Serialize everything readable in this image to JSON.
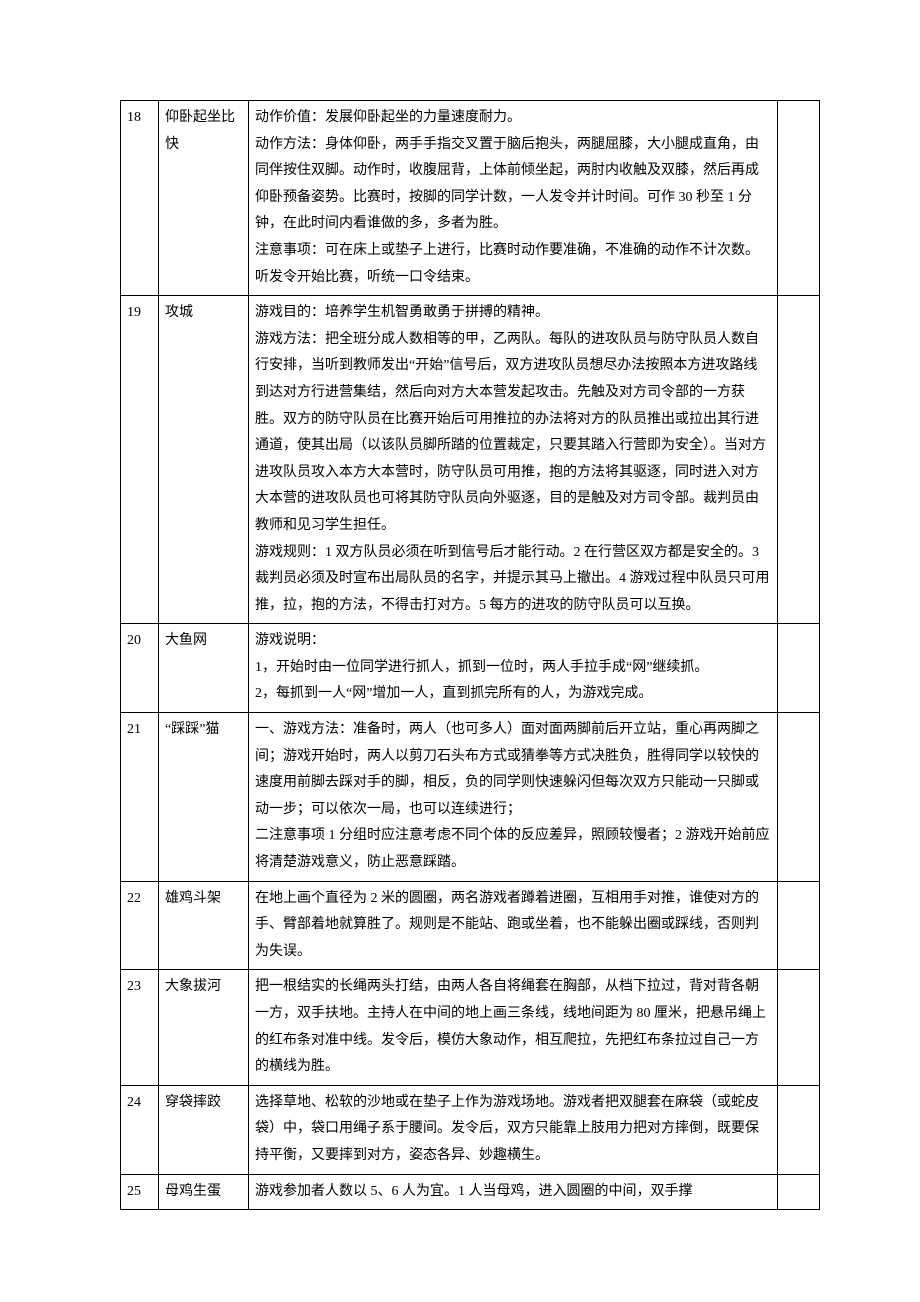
{
  "rows": [
    {
      "num": "18",
      "name": "仰卧起坐比快",
      "desc": "动作价值：发展仰卧起坐的力量速度耐力。\n动作方法：身体仰卧，两手手指交叉置于脑后抱头，两腿屈膝，大小腿成直角，由同伴按住双脚。动作时，收腹屈背，上体前倾坐起，两肘内收触及双膝，然后再成仰卧预备姿势。比赛时，按脚的同学计数，一人发令并计时间。可作 30 秒至 1 分钟，在此时间内看谁做的多，多者为胜。\n注意事项：可在床上或垫子上进行，比赛时动作要准确，不准确的动作不计次数。听发令开始比赛，听统一口令结束。",
      "extra": ""
    },
    {
      "num": "19",
      "name": "攻城",
      "desc": "游戏目的：培养学生机智勇敢勇于拼搏的精神。\n游戏方法：把全班分成人数相等的甲，乙两队。每队的进攻队员与防守队员人数自行安排，当听到教师发出“开始”信号后，双方进攻队员想尽办法按照本方进攻路线到达对方行进营集结，然后向对方大本营发起攻击。先触及对方司令部的一方获胜。双方的防守队员在比赛开始后可用推拉的办法将对方的队员推出或拉出其行进通道，使其出局（以该队员脚所踏的位置裁定，只要其踏入行营即为安全）。当对方进攻队员攻入本方大本营时，防守队员可用推，抱的方法将其驱逐，同时进入对方大本营的进攻队员也可将其防守队员向外驱逐，目的是触及对方司令部。裁判员由教师和见习学生担任。\n游戏规则：1 双方队员必须在听到信号后才能行动。2 在行营区双方都是安全的。3 裁判员必须及时宣布出局队员的名字，并提示其马上撤出。4 游戏过程中队员只可用推，拉，抱的方法，不得击打对方。5 每方的进攻的防守队员可以互换。",
      "extra": ""
    },
    {
      "num": "20",
      "name": "大鱼网",
      "desc": "游戏说明：\n1，开始时由一位同学进行抓人，抓到一位时，两人手拉手成“网”继续抓。\n2，每抓到一人“网”增加一人，直到抓完所有的人，为游戏完成。",
      "extra": ""
    },
    {
      "num": "21",
      "name": "“踩踩”猫",
      "desc": "一、游戏方法：准备时，两人（也可多人）面对面两脚前后开立站，重心再两脚之间；游戏开始时，两人以剪刀石头布方式或猜拳等方式决胜负，胜得同学以较快的速度用前脚去踩对手的脚，相反，负的同学则快速躲闪但每次双方只能动一只脚或动一步；可以依次一局，也可以连续进行；\n二注意事项 1 分组时应注意考虑不同个体的反应差异，照顾较慢者；2 游戏开始前应将清楚游戏意义，防止恶意踩踏。",
      "extra": ""
    },
    {
      "num": "22",
      "name": "雄鸡斗架",
      "desc": "在地上画个直径为 2 米的圆圈，两名游戏者蹲着进圈，互相用手对推，谁使对方的手、臂部着地就算胜了。规则是不能站、跑或坐着，也不能躲出圈或踩线，否则判为失误。",
      "extra": ""
    },
    {
      "num": "23",
      "name": "大象拔河",
      "desc": "把一根结实的长绳两头打结，由两人各自将绳套在胸部，从档下拉过，背对背各朝一方，双手扶地。主持人在中间的地上画三条线，线地间距为 80 厘米，把悬吊绳上的红布条对准中线。发令后，模仿大象动作，相互爬拉，先把红布条拉过自己一方的横线为胜。",
      "extra": ""
    },
    {
      "num": "24",
      "name": "穿袋摔跤",
      "desc": "选择草地、松软的沙地或在垫子上作为游戏场地。游戏者把双腿套在麻袋（或蛇皮袋）中，袋口用绳子系于腰间。发令后，双方只能靠上肢用力把对方摔倒，既要保持平衡，又要摔到对方，姿态各异、妙趣横生。",
      "extra": ""
    },
    {
      "num": "25",
      "name": "母鸡生蛋",
      "desc": "游戏参加者人数以 5、6 人为宜。1 人当母鸡，进入圆圈的中间，双手撑",
      "extra": ""
    }
  ]
}
